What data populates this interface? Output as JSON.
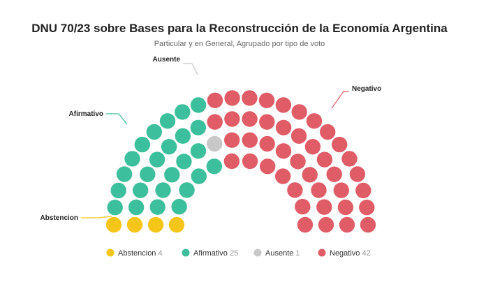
{
  "chart_data": {
    "type": "parliament",
    "title": "DNU 70/23 sobre Bases para la Reconstrucción de la Economía Argentina",
    "subtitle": "Particular y en General, Agrupado por tipo de voto",
    "series": [
      {
        "name": "Abstencion",
        "value": 4,
        "color": "#f5c518"
      },
      {
        "name": "Afirmativo",
        "value": 25,
        "color": "#3cbf9c"
      },
      {
        "name": "Ausente",
        "value": 1,
        "color": "#c8c8c8"
      },
      {
        "name": "Negativo",
        "value": 42,
        "color": "#e05c66"
      }
    ],
    "total_seats": 72,
    "annotations": [
      "Ausente",
      "Negativo",
      "Afirmativo",
      "Abstencion"
    ],
    "legend_position": "bottom"
  }
}
